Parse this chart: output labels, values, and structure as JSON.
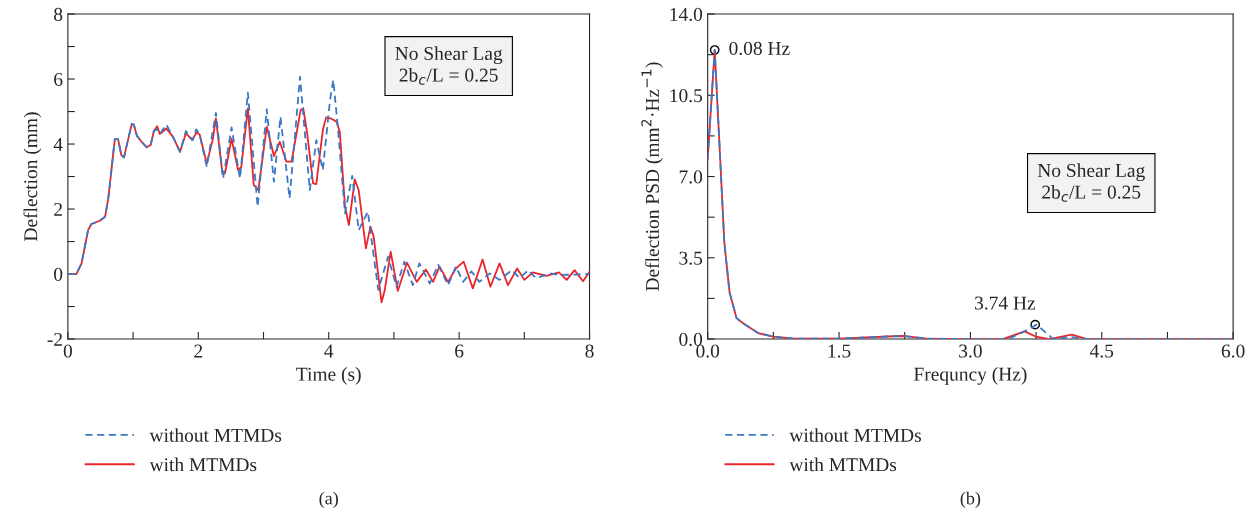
{
  "chart_data": [
    {
      "type": "line",
      "xlabel": "Time (s)",
      "ylabel": "Deflection (mm)",
      "xlim": [
        0,
        8
      ],
      "ylim": [
        -2,
        8
      ],
      "xticks": [
        0,
        {
          "value": 1,
          "label": null
        },
        2,
        {
          "value": 3,
          "label": null
        },
        4,
        {
          "value": 5,
          "label": null
        },
        6,
        {
          "value": 7,
          "label": null
        },
        8
      ],
      "yticks": [
        -2,
        {
          "value": -1,
          "label": null
        },
        0,
        {
          "value": 1,
          "label": null
        },
        2,
        {
          "value": 3,
          "label": null
        },
        4,
        {
          "value": 5,
          "label": null
        },
        6,
        {
          "value": 7,
          "label": null
        },
        8
      ],
      "grid": false,
      "legend": "bottom",
      "marker": "none",
      "annotations": [
        "No Shear Lag\n2b$_{c}$/L = 0.25",
        "(a)"
      ],
      "series": [
        {
          "name": "without MTMDs",
          "color": "#3b78c6",
          "line_style": "dashed",
          "x": [
            0,
            0.13,
            0.21,
            0.31,
            0.36,
            0.49,
            0.57,
            0.62,
            0.72,
            0.77,
            0.82,
            0.86,
            0.98,
            1.01,
            1.06,
            1.13,
            1.21,
            1.27,
            1.32,
            1.37,
            1.41,
            1.51,
            1.61,
            1.72,
            1.81,
            1.91,
            1.97,
            2.02,
            2.13,
            2.27,
            2.38,
            2.51,
            2.64,
            2.76,
            2.91,
            3.05,
            3.16,
            3.26,
            3.4,
            3.56,
            3.71,
            3.81,
            3.91,
            4.02,
            4.07,
            4.14,
            4.25,
            4.36,
            4.46,
            4.6,
            4.76,
            4.91,
            5.04,
            5.16,
            5.29,
            5.39,
            5.55,
            5.68,
            5.83,
            5.95,
            6.06,
            6.19,
            6.31,
            6.47,
            6.62,
            6.81,
            6.93,
            7.06,
            7.18,
            7.39,
            7.55,
            8.0
          ],
          "values": [
            0,
            0,
            0.33,
            1.35,
            1.54,
            1.64,
            1.76,
            2.33,
            4.15,
            4.15,
            3.66,
            3.59,
            4.62,
            4.6,
            4.25,
            4.07,
            3.9,
            3.97,
            4.41,
            4.45,
            4.31,
            4.6,
            4.23,
            3.76,
            4.4,
            4.12,
            4.45,
            4.3,
            3.3,
            4.96,
            2.94,
            4.51,
            2.94,
            5.58,
            2.07,
            5.07,
            2.84,
            4.84,
            2.33,
            6.07,
            2.58,
            4.12,
            3.2,
            5.35,
            5.97,
            4.53,
            1.87,
            3.02,
            1.35,
            1.92,
            -0.49,
            0.53,
            -0.39,
            0.38,
            -0.34,
            0.33,
            -0.29,
            0.28,
            -0.34,
            0.23,
            -0.24,
            0.08,
            -0.24,
            0.02,
            -0.18,
            0.12,
            -0.13,
            0.12,
            -0.13,
            0.02,
            -0.03,
            0.0
          ]
        },
        {
          "name": "with MTMDs",
          "color": "#e8262c",
          "line_style": "solid",
          "x": [
            0,
            0.13,
            0.21,
            0.31,
            0.36,
            0.49,
            0.57,
            0.62,
            0.72,
            0.77,
            0.82,
            0.86,
            0.98,
            1.01,
            1.06,
            1.13,
            1.21,
            1.27,
            1.32,
            1.37,
            1.41,
            1.51,
            1.61,
            1.72,
            1.81,
            1.91,
            1.97,
            2.02,
            2.13,
            2.22,
            2.27,
            2.37,
            2.41,
            2.51,
            2.61,
            2.66,
            2.76,
            2.85,
            2.92,
            3.05,
            3.16,
            3.25,
            3.35,
            3.43,
            3.57,
            3.61,
            3.67,
            3.76,
            3.81,
            3.91,
            3.96,
            4.04,
            4.12,
            4.17,
            4.25,
            4.31,
            4.4,
            4.46,
            4.57,
            4.64,
            4.69,
            4.81,
            4.86,
            4.95,
            5.06,
            5.2,
            5.35,
            5.49,
            5.6,
            5.7,
            5.83,
            5.95,
            6.07,
            6.21,
            6.36,
            6.48,
            6.62,
            6.75,
            6.89,
            7.0,
            7.13,
            7.34,
            7.53,
            7.65,
            7.77,
            7.9,
            8.0
          ],
          "values": [
            0,
            0,
            0.33,
            1.35,
            1.54,
            1.64,
            1.76,
            2.33,
            4.15,
            4.15,
            3.66,
            3.59,
            4.62,
            4.6,
            4.25,
            4.07,
            3.9,
            3.97,
            4.41,
            4.55,
            4.31,
            4.48,
            4.23,
            3.76,
            4.33,
            4.12,
            4.35,
            4.3,
            3.4,
            4.12,
            4.79,
            3.1,
            3.1,
            4.17,
            3.2,
            3.3,
            5.1,
            2.74,
            2.58,
            4.53,
            3.63,
            4.07,
            3.46,
            3.46,
            5.05,
            5.1,
            4.33,
            2.79,
            2.77,
            4.43,
            4.82,
            4.78,
            4.69,
            4.38,
            2.07,
            1.51,
            2.91,
            2.58,
            0.79,
            1.46,
            1.15,
            -0.87,
            -0.49,
            0.69,
            -0.52,
            0.35,
            -0.24,
            0.14,
            -0.24,
            0.23,
            -0.24,
            0.17,
            0.38,
            -0.44,
            0.45,
            -0.39,
            0.33,
            -0.34,
            0.17,
            -0.18,
            0.05,
            -0.06,
            0.05,
            -0.18,
            0.12,
            -0.22,
            0.07
          ]
        }
      ]
    },
    {
      "type": "line",
      "xlabel": "Frequncy (Hz)",
      "ylabel": "Deflection PSD (mm$^{2}$·Hz$^{−1}$)",
      "xlim": [
        0,
        6
      ],
      "ylim": [
        0,
        14
      ],
      "xticks": [
        {
          "value": 0,
          "label": "0.0"
        },
        {
          "value": 0.75,
          "label": null
        },
        1.5,
        {
          "value": 2.25,
          "label": null
        },
        {
          "value": 3,
          "label": "3.0"
        },
        {
          "value": 3.75,
          "label": null
        },
        4.5,
        {
          "value": 5.25,
          "label": null
        },
        {
          "value": 6,
          "label": "6.0"
        }
      ],
      "yticks": [
        {
          "value": 0,
          "label": "0.0"
        },
        {
          "value": 1.75,
          "label": null
        },
        3.5,
        {
          "value": 5.25,
          "label": null
        },
        {
          "value": 7,
          "label": "7.0"
        },
        {
          "value": 8.75,
          "label": null
        },
        10.5,
        {
          "value": 12.25,
          "label": null
        },
        {
          "value": 14,
          "label": "14.0"
        }
      ],
      "grid": false,
      "legend": "bottom",
      "marker": "none",
      "annotations": [
        "No Shear Lag\n2b$_{c}$/L = 0.25",
        "(b)",
        {
          "text": "0.08 Hz",
          "x": 0.08,
          "y": 12.45
        },
        {
          "text": "3.74 Hz",
          "x": 3.74,
          "y": 0.62
        }
      ],
      "series": [
        {
          "name": "without MTMDs",
          "color": "#3b78c6",
          "line_style": "dashed",
          "x": [
            0,
            0.08,
            0.137,
            0.19,
            0.25,
            0.33,
            0.4,
            0.575,
            0.75,
            0.98,
            1.5,
            2.12,
            2.25,
            2.5,
            3.0,
            3.37,
            3.45,
            3.6,
            3.757,
            3.94,
            4.16,
            4.33,
            6.0
          ],
          "values": [
            7.76,
            12.45,
            8.2,
            4.15,
            2.0,
            0.9,
            0.69,
            0.26,
            0.1,
            0.02,
            0.02,
            0.12,
            0.13,
            0.02,
            0.0,
            0.0,
            0.03,
            0.3,
            0.62,
            0.02,
            0.08,
            0.0,
            0.0
          ]
        },
        {
          "name": "with MTMDs",
          "color": "#e8262c",
          "line_style": "solid",
          "x": [
            0,
            0.08,
            0.137,
            0.19,
            0.25,
            0.33,
            0.4,
            0.575,
            0.75,
            0.98,
            1.5,
            2.12,
            2.25,
            2.5,
            3.0,
            3.37,
            3.62,
            3.75,
            3.9,
            4.16,
            4.33,
            6.0
          ],
          "values": [
            7.76,
            12.45,
            8.2,
            4.15,
            2.0,
            0.9,
            0.69,
            0.26,
            0.1,
            0.02,
            0.02,
            0.12,
            0.13,
            0.02,
            0.0,
            0.0,
            0.33,
            0.1,
            0.0,
            0.19,
            0.0,
            0.0
          ]
        }
      ]
    }
  ]
}
